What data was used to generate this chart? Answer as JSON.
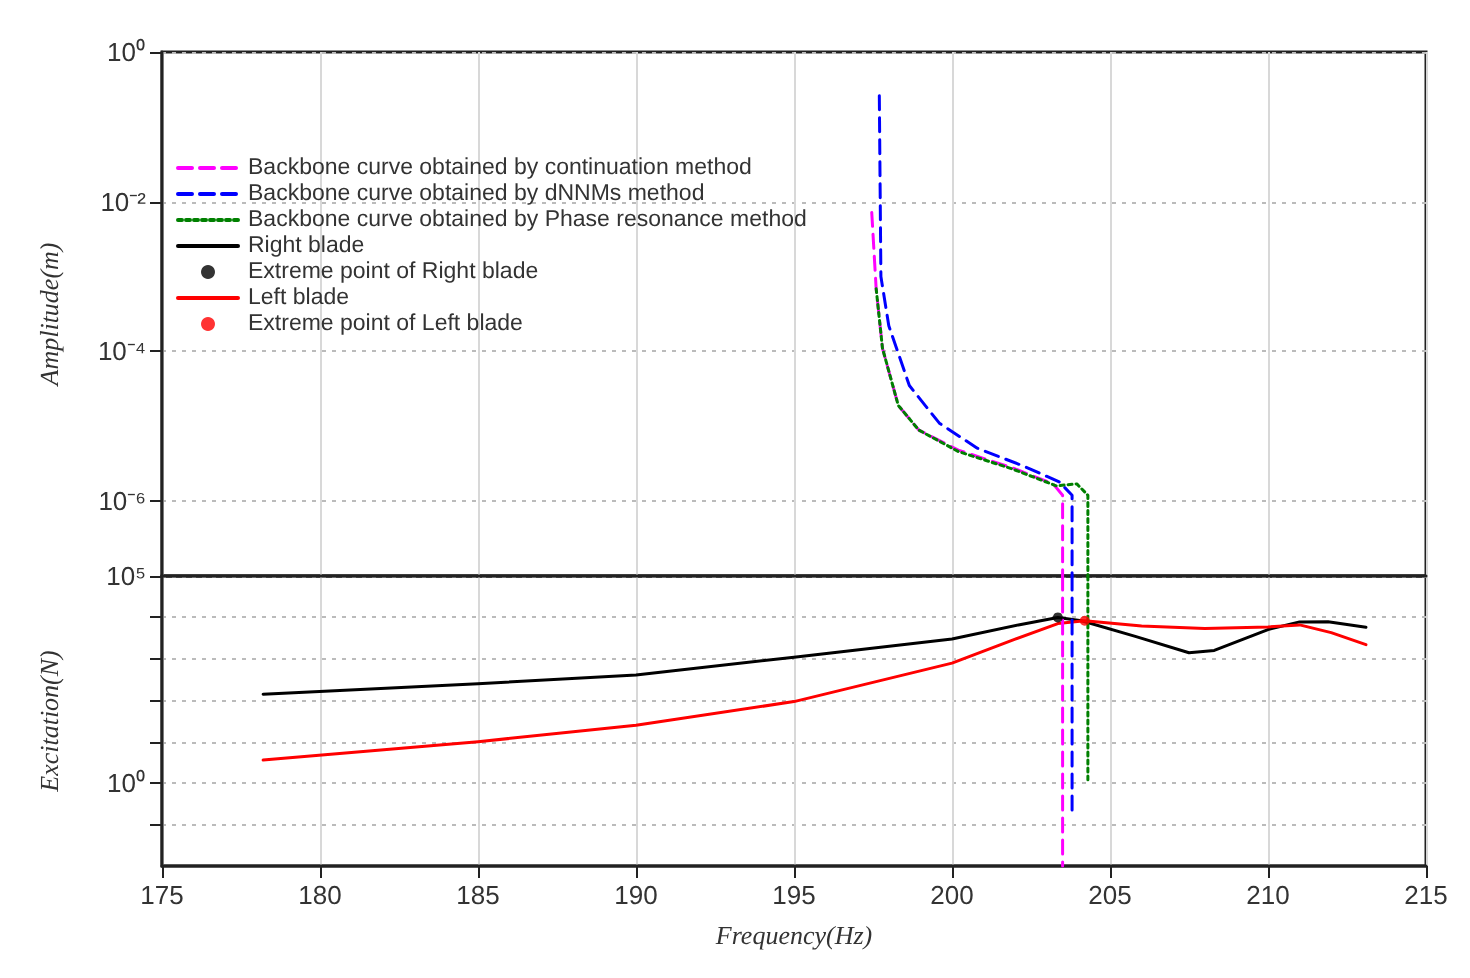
{
  "chart_data": [
    {
      "type": "line",
      "ylabel": "Amplitude(m)",
      "log": "y",
      "xlim": [
        175,
        215
      ],
      "xticks": [
        175,
        180,
        185,
        190,
        195,
        200,
        205,
        210,
        215
      ],
      "ylim": [
        1e-07,
        1
      ],
      "yticks": [
        {
          "value": 1,
          "label": "10⁰"
        },
        {
          "value": 0.01,
          "label": "10⁻²"
        },
        {
          "value": 0.0001,
          "label": "10⁻⁴"
        },
        {
          "value": 1e-06,
          "label": "10⁻⁶"
        }
      ],
      "tick_labels": "y",
      "grid": true,
      "legend": "top left",
      "series": [
        {
          "name": "Backbone curve obtained by continuation method",
          "color": "#ff00ff",
          "line_style": "dashed",
          "marker": "none",
          "x": [
            197.46,
            197.6,
            197.8,
            198.3,
            198.95,
            200.2,
            201.9,
            203.2,
            203.5,
            203.5
          ],
          "values": [
            0.0072,
            0.00069,
            0.00011,
            1.9e-05,
            8.9e-06,
            4.8e-06,
            2.8e-06,
            1.7e-06,
            1.2e-06,
            1e-07
          ]
        },
        {
          "name": "Backbone curve obtained by dNNMs method",
          "color": "#0000ff",
          "line_style": "dashed",
          "marker": "none",
          "x": [
            197.7,
            197.75,
            198.0,
            198.65,
            199.6,
            200.8,
            202.3,
            203.4,
            203.8,
            203.8
          ],
          "values": [
            0.26,
            0.001,
            0.00022,
            3.5e-05,
            1.1e-05,
            5.1e-06,
            2.9e-06,
            1.8e-06,
            1.2e-06,
            1e-07
          ]
        },
        {
          "name": "Backbone curve obtained by Phase resonance method",
          "color": "#008000",
          "line_style": "dotted",
          "marker": "none",
          "x": [
            197.6,
            197.8,
            198.3,
            198.95,
            200.2,
            201.9,
            203.3,
            203.95,
            204.3,
            204.3
          ],
          "values": [
            0.00069,
            0.00011,
            1.9e-05,
            8.9e-06,
            4.6e-06,
            2.7e-06,
            1.6e-06,
            1.7e-06,
            1.2e-06,
            1e-07
          ]
        }
      ]
    },
    {
      "type": "line",
      "xlabel": "Frequency(Hz)",
      "ylabel": "Excitation(N)",
      "log": "y",
      "legend": "top left",
      "xlim": [
        175,
        215
      ],
      "xticks": [
        175,
        180,
        185,
        190,
        195,
        200,
        205,
        210,
        215
      ],
      "ylim": [
        0.01,
        100000
      ],
      "yticks": [
        {
          "value": 100000,
          "label": "10⁵"
        },
        {
          "value": 10000,
          "label": null
        },
        {
          "value": 1000,
          "label": null
        },
        {
          "value": 100,
          "label": null
        },
        {
          "value": 10,
          "label": null
        },
        {
          "value": 1,
          "label": "10⁰"
        },
        {
          "value": 0.1,
          "label": null
        }
      ],
      "grid": true,
      "series": [
        {
          "name": "Right blade",
          "color": "#000000",
          "line_style": "solid",
          "marker": "none",
          "x": [
            178.2,
            185,
            190,
            195,
            200,
            202.1,
            203.35,
            204.1,
            205.8,
            207.5,
            208.3,
            210,
            211,
            211.9,
            213.1
          ],
          "values": [
            140,
            250,
            410,
            1100,
            3000,
            6600,
            10000,
            8300,
            3500,
            1400,
            1600,
            5100,
            7800,
            7900,
            5800
          ]
        },
        {
          "name": "Extreme point of Right blade",
          "type": "scatter",
          "color": "#000000",
          "marker": "circle",
          "x": [
            203.35
          ],
          "values": [
            10000
          ]
        },
        {
          "name": "Left blade",
          "color": "#ff0000",
          "line_style": "solid",
          "marker": "none",
          "x": [
            178.2,
            185,
            190,
            195,
            200,
            202,
            203.35,
            204.2,
            206,
            208,
            210,
            211,
            212,
            213.1
          ],
          "values": [
            3.6,
            10,
            25,
            93,
            790,
            3000,
            7100,
            8300,
            6200,
            5400,
            5900,
            6600,
            4300,
            2200
          ]
        },
        {
          "name": "Extreme point of Left blade",
          "type": "scatter",
          "color": "#ff0000",
          "marker": "circle",
          "x": [
            204.2
          ],
          "values": [
            8300
          ]
        },
        {
          "name": "Backbone curve obtained by continuation method",
          "color": "#ff00ff",
          "line_style": "dashed",
          "marker": "none",
          "x": [
            203.5,
            203.5
          ],
          "values": [
            100000,
            0.01
          ]
        },
        {
          "name": "Backbone curve obtained by dNNMs method",
          "color": "#0000ff",
          "line_style": "dashed",
          "marker": "none",
          "x": [
            203.8,
            203.8
          ],
          "values": [
            100000,
            0.19
          ]
        },
        {
          "name": "Backbone curve obtained by Phase resonance method",
          "color": "#008000",
          "line_style": "dotted",
          "marker": "none",
          "x": [
            204.3,
            204.3
          ],
          "values": [
            100000,
            1.2
          ]
        }
      ]
    }
  ]
}
